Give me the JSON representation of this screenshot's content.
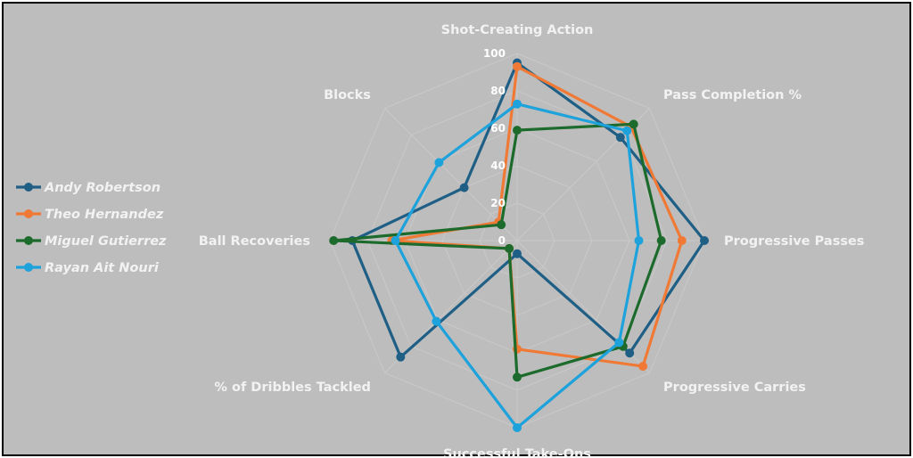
{
  "chart_data": {
    "type": "radar",
    "axes": [
      "Shot-Creating Action",
      "Pass Completion %",
      "Progressive Passes",
      "Progressive Carries",
      "Successful Take-Ons",
      "% of Dribbles Tackled",
      "Ball Recoveries",
      "Blocks"
    ],
    "rlim": [
      0,
      100
    ],
    "ticks": [
      0,
      20,
      40,
      60,
      80,
      100
    ],
    "grid": true,
    "legend_position": "left",
    "series": [
      {
        "name": "Andy Robertson",
        "color": "#1f5f86",
        "values": [
          95,
          78,
          100,
          85,
          7,
          88,
          88,
          40
        ]
      },
      {
        "name": "Theo Hernandez",
        "color": "#f07a35",
        "values": [
          93,
          86,
          88,
          95,
          58,
          6,
          67,
          14
        ]
      },
      {
        "name": "Miguel Gutierrez",
        "color": "#1d6b2c",
        "values": [
          59,
          88,
          77,
          80,
          73,
          6,
          98,
          12
        ]
      },
      {
        "name": "Rayan Ait Nouri",
        "color": "#1da2dc",
        "values": [
          73,
          83,
          65,
          77,
          100,
          61,
          65,
          59
        ]
      }
    ]
  }
}
